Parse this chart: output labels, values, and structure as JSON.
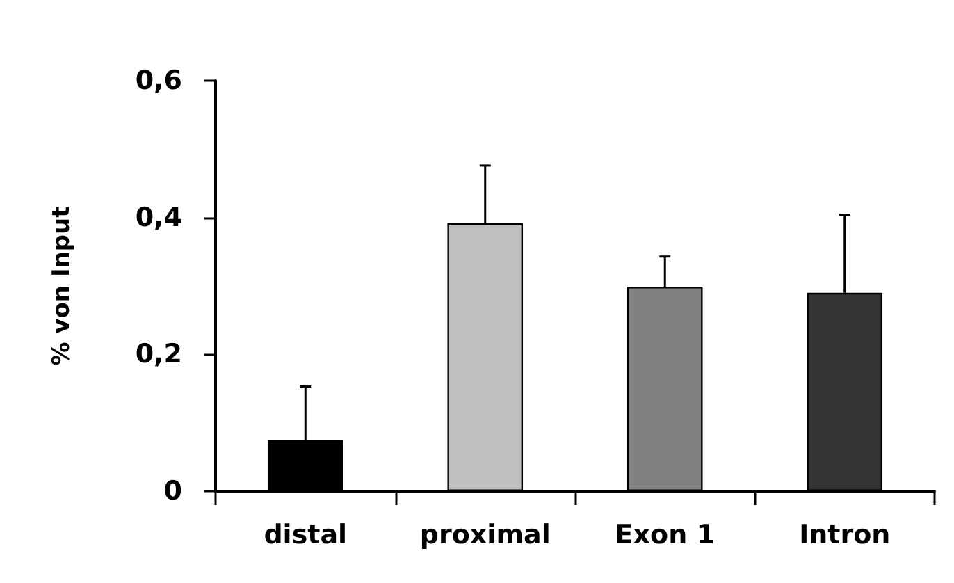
{
  "chart_data": {
    "type": "bar",
    "ylabel": "% von Input",
    "categories": [
      "distal",
      "proximal",
      "Exon 1",
      "Intron"
    ],
    "values": [
      0.075,
      0.392,
      0.299,
      0.29
    ],
    "colors": [
      "#000000",
      "#c0c0c0",
      "#808080",
      "#333333"
    ],
    "errors": [
      [
        0.075,
        0.153
      ],
      [
        0.392,
        0.476
      ],
      [
        0.299,
        0.343
      ],
      [
        0.29,
        0.404
      ]
    ],
    "ylim": [
      0,
      0.6
    ],
    "yticks": [
      0,
      {
        "value": 0.2,
        "label": "0,2"
      },
      {
        "value": 0.4,
        "label": "0,4"
      },
      {
        "value": 0.6,
        "label": "0,6"
      }
    ],
    "grid": false
  }
}
